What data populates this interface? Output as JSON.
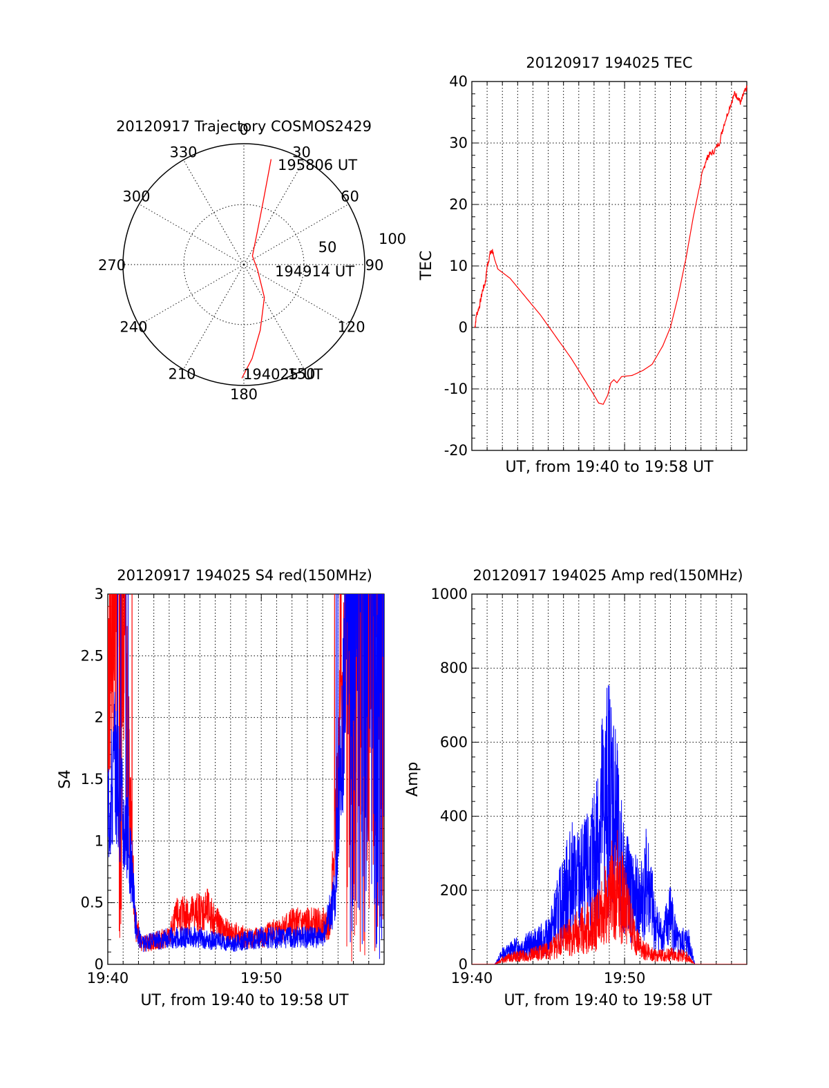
{
  "colors": {
    "red": "#ff0000",
    "blue": "#0000ff"
  },
  "chart_data": [
    {
      "type": "polar",
      "title": "20120917 Trajectory COSMOS2429",
      "angle_labels": [
        "0",
        "30",
        "60",
        "90",
        "120",
        "150",
        "180",
        "210",
        "240",
        "270",
        "300",
        "330"
      ],
      "radial_labels": [
        "50",
        "100"
      ],
      "annotations": [
        "195806 UT",
        "194914 UT",
        "194025 UT"
      ],
      "trajectory": [
        {
          "az": 181,
          "r": 94
        },
        {
          "az": 175,
          "r": 78
        },
        {
          "az": 166,
          "r": 56
        },
        {
          "az": 148,
          "r": 32
        },
        {
          "az": 110,
          "r": 12
        },
        {
          "az": 45,
          "r": 10
        },
        {
          "az": 22,
          "r": 30
        },
        {
          "az": 17,
          "r": 55
        },
        {
          "az": 15,
          "r": 80
        },
        {
          "az": 14.5,
          "r": 90
        }
      ]
    },
    {
      "type": "line",
      "title": "20120917 194025 TEC",
      "ylabel": "TEC",
      "xlabel": "UT, from 19:40 to 19:58 UT",
      "ylim": [
        -20,
        40
      ],
      "yticks": [
        "-20",
        "-10",
        "0",
        "10",
        "20",
        "30",
        "40"
      ],
      "xlim_minutes": [
        0,
        18
      ],
      "series": [
        {
          "color": "red",
          "points": [
            [
              0.2,
              0
            ],
            [
              0.3,
              2
            ],
            [
              0.5,
              3.5
            ],
            [
              0.7,
              6
            ],
            [
              0.9,
              7.5
            ],
            [
              1.0,
              10
            ],
            [
              1.2,
              12
            ],
            [
              1.35,
              12.5
            ],
            [
              1.5,
              11
            ],
            [
              1.7,
              9.5
            ],
            [
              2.5,
              8
            ],
            [
              3.5,
              5
            ],
            [
              4.5,
              2
            ],
            [
              5.5,
              -1.5
            ],
            [
              6.5,
              -5
            ],
            [
              7.5,
              -9
            ],
            [
              8.0,
              -11
            ],
            [
              8.3,
              -12.3
            ],
            [
              8.6,
              -12.5
            ],
            [
              8.9,
              -11
            ],
            [
              9.1,
              -9
            ],
            [
              9.3,
              -8.5
            ],
            [
              9.5,
              -9
            ],
            [
              9.8,
              -8
            ],
            [
              10.5,
              -7.8
            ],
            [
              11.2,
              -7
            ],
            [
              11.8,
              -6
            ],
            [
              12.5,
              -3
            ],
            [
              13.0,
              0
            ],
            [
              13.5,
              5
            ],
            [
              14.0,
              11
            ],
            [
              14.5,
              18
            ],
            [
              15.0,
              24
            ],
            [
              15.3,
              27
            ],
            [
              15.5,
              28
            ],
            [
              15.8,
              28.5
            ],
            [
              16.2,
              30
            ],
            [
              16.5,
              33
            ],
            [
              16.9,
              36
            ],
            [
              17.2,
              38
            ],
            [
              17.4,
              37.5
            ],
            [
              17.6,
              36.5
            ],
            [
              17.8,
              38
            ],
            [
              18.0,
              39
            ]
          ]
        }
      ]
    },
    {
      "type": "line",
      "title": "20120917 194025 S4 red(150MHz)",
      "ylabel": "S4",
      "xlabel": "UT, from 19:40 to 19:58 UT",
      "ylim": [
        0,
        3
      ],
      "yticks": [
        "0",
        "0.5",
        "1",
        "1.5",
        "2",
        "2.5",
        "3"
      ],
      "xticks": [
        "19:40",
        "19:50"
      ],
      "xlim_minutes": [
        0,
        18
      ],
      "series": [
        {
          "color": "red",
          "profile": [
            [
              0,
              2.2
            ],
            [
              0.5,
              2.8
            ],
            [
              0.9,
              3
            ],
            [
              1.2,
              2.2
            ],
            [
              1.5,
              1.1
            ],
            [
              1.8,
              0.3
            ],
            [
              2.2,
              0.15
            ],
            [
              4,
              0.2
            ],
            [
              4.5,
              0.35
            ],
            [
              6.5,
              0.4
            ],
            [
              7.5,
              0.25
            ],
            [
              9,
              0.2
            ],
            [
              10,
              0.2
            ],
            [
              11,
              0.25
            ],
            [
              12,
              0.3
            ],
            [
              13,
              0.3
            ],
            [
              14.5,
              0.3
            ],
            [
              15.2,
              2
            ],
            [
              15.6,
              3
            ],
            [
              18,
              3
            ]
          ]
        },
        {
          "color": "blue",
          "profile": [
            [
              0,
              1.3
            ],
            [
              0.5,
              1.6
            ],
            [
              1.0,
              1.2
            ],
            [
              1.5,
              0.8
            ],
            [
              1.8,
              0.3
            ],
            [
              2.2,
              0.15
            ],
            [
              4,
              0.2
            ],
            [
              6,
              0.2
            ],
            [
              8,
              0.15
            ],
            [
              10,
              0.2
            ],
            [
              12,
              0.2
            ],
            [
              14,
              0.2
            ],
            [
              14.8,
              0.5
            ],
            [
              15.3,
              2
            ],
            [
              15.8,
              3
            ],
            [
              18,
              3
            ]
          ]
        }
      ]
    },
    {
      "type": "line",
      "title": "20120917 194025 Amp red(150MHz)",
      "ylabel": "Amp",
      "xlabel": "UT, from 19:40 to 19:58 UT",
      "ylim": [
        0,
        1000
      ],
      "yticks": [
        "0",
        "200",
        "400",
        "600",
        "800",
        "1000"
      ],
      "xticks": [
        "19:40",
        "19:50"
      ],
      "xlim_minutes": [
        0,
        18
      ],
      "series": [
        {
          "color": "blue",
          "profile": [
            [
              0,
              0
            ],
            [
              1.5,
              0
            ],
            [
              2,
              30
            ],
            [
              3,
              50
            ],
            [
              4,
              60
            ],
            [
              5,
              80
            ],
            [
              6,
              200
            ],
            [
              6.5,
              250
            ],
            [
              7,
              240
            ],
            [
              7.5,
              260
            ],
            [
              8,
              300
            ],
            [
              8.5,
              450
            ],
            [
              9,
              520
            ],
            [
              9.3,
              480
            ],
            [
              9.6,
              350
            ],
            [
              10,
              250
            ],
            [
              10.5,
              200
            ],
            [
              11,
              180
            ],
            [
              11.5,
              250
            ],
            [
              12,
              120
            ],
            [
              12.5,
              80
            ],
            [
              13,
              150
            ],
            [
              13.5,
              60
            ],
            [
              14.2,
              70
            ],
            [
              14.6,
              0
            ],
            [
              18,
              0
            ]
          ]
        },
        {
          "color": "red",
          "profile": [
            [
              0,
              0
            ],
            [
              1.5,
              0
            ],
            [
              2,
              15
            ],
            [
              3,
              25
            ],
            [
              4,
              30
            ],
            [
              5,
              40
            ],
            [
              6,
              70
            ],
            [
              7,
              100
            ],
            [
              8,
              120
            ],
            [
              8.5,
              150
            ],
            [
              9,
              200
            ],
            [
              9.5,
              260
            ],
            [
              10,
              180
            ],
            [
              10.5,
              100
            ],
            [
              11,
              50
            ],
            [
              12,
              25
            ],
            [
              13,
              30
            ],
            [
              14,
              25
            ],
            [
              14.6,
              0
            ],
            [
              18,
              0
            ]
          ]
        }
      ]
    }
  ]
}
